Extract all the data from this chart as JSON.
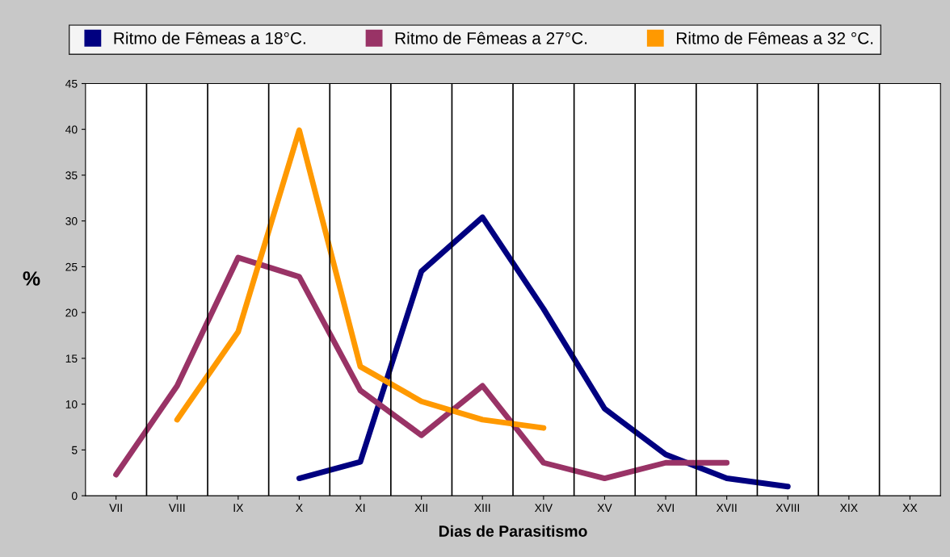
{
  "chart_data": {
    "type": "line",
    "xlabel": "Dias de Parasitismo",
    "ylabel": "%",
    "categories": [
      "VII",
      "VIII",
      "IX",
      "X",
      "XI",
      "XII",
      "XIII",
      "XIV",
      "XV",
      "XVI",
      "XVII",
      "XVIII",
      "XIX",
      "XX"
    ],
    "series": [
      {
        "name": "Ritmo de Fêmeas a 18°C.",
        "color": "#000080",
        "values": [
          null,
          null,
          null,
          1.9,
          3.7,
          24.5,
          30.4,
          20.4,
          9.5,
          4.5,
          1.9,
          1.0,
          null,
          null
        ]
      },
      {
        "name": "Ritmo de Fêmeas a 27°C.",
        "color": "#993366",
        "values": [
          2.3,
          12.0,
          26.0,
          23.9,
          11.5,
          6.6,
          12.0,
          3.6,
          1.9,
          3.6,
          3.6,
          null,
          null,
          null
        ]
      },
      {
        "name": "Ritmo de Fêmeas a 32 °C.",
        "color": "#ff9900",
        "values": [
          null,
          8.3,
          17.9,
          39.9,
          14.1,
          10.3,
          8.3,
          7.4,
          null,
          null,
          null,
          null,
          null,
          null
        ]
      }
    ],
    "ylim": [
      0,
      45
    ],
    "yticks": [
      0,
      5,
      10,
      15,
      20,
      25,
      30,
      35,
      40,
      45
    ],
    "grid": "x",
    "legend": "top",
    "marker": "none",
    "line_style": "solid"
  }
}
